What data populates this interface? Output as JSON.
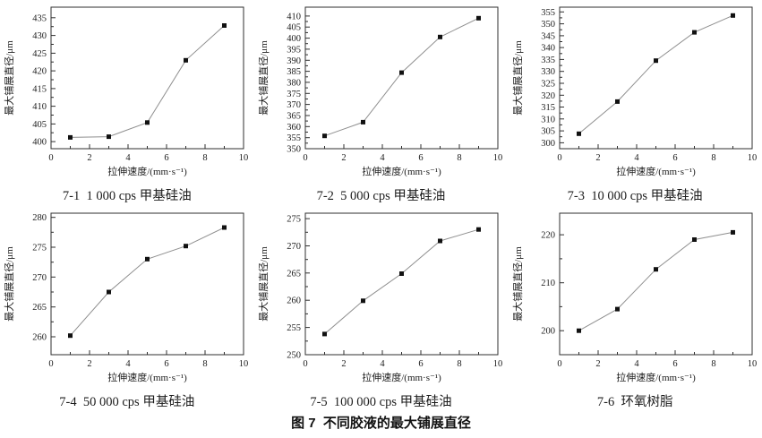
{
  "figure_caption": "图 7  不同胶液的最大铺展直径",
  "colors": {
    "axis": "#2f2f2f",
    "line": "#8f8f8f",
    "marker": "#111111",
    "background": "#ffffff"
  },
  "chart_data": [
    {
      "id": "7-1",
      "type": "line",
      "title": "7-1  1 000 cps 甲基硅油",
      "xlabel": "拉伸速度/(mm·s⁻¹)",
      "ylabel": "最大铺展直径/μm",
      "x": [
        1,
        3,
        5,
        7,
        9
      ],
      "y": [
        401.2,
        401.4,
        405.4,
        423.0,
        432.8
      ],
      "xlim": [
        0,
        10
      ],
      "ylim": [
        398,
        438
      ],
      "xticks": [
        0,
        2,
        4,
        6,
        8,
        10
      ],
      "yticks": [
        400,
        405,
        410,
        415,
        420,
        425,
        430,
        435
      ],
      "marker": "square",
      "grid": false,
      "legend": "none"
    },
    {
      "id": "7-2",
      "type": "line",
      "title": "7-2  5 000 cps 甲基硅油",
      "xlabel": "拉伸速度/(mm·s⁻¹)",
      "ylabel": "最大铺展直径/μm",
      "x": [
        1,
        3,
        5,
        7,
        9
      ],
      "y": [
        355.8,
        362.0,
        384.4,
        400.5,
        409.0
      ],
      "xlim": [
        0,
        10
      ],
      "ylim": [
        350,
        414
      ],
      "xticks": [
        0,
        2,
        4,
        6,
        8,
        10
      ],
      "yticks": [
        350,
        355,
        360,
        365,
        370,
        375,
        380,
        385,
        390,
        395,
        400,
        405,
        410
      ],
      "marker": "square",
      "grid": false,
      "legend": "none"
    },
    {
      "id": "7-3",
      "type": "line",
      "title": "7-3  10 000 cps 甲基硅油",
      "xlabel": "拉伸速度/(mm·s⁻¹)",
      "ylabel": "最大铺展直径/μm",
      "x": [
        1,
        3,
        5,
        7,
        9
      ],
      "y": [
        303.8,
        317.3,
        334.5,
        346.4,
        353.5
      ],
      "xlim": [
        0,
        10
      ],
      "ylim": [
        297.5,
        357
      ],
      "xticks": [
        0,
        2,
        4,
        6,
        8,
        10
      ],
      "yticks": [
        300,
        305,
        310,
        315,
        320,
        325,
        330,
        335,
        340,
        345,
        350,
        355
      ],
      "marker": "square",
      "grid": false,
      "legend": "none"
    },
    {
      "id": "7-4",
      "type": "line",
      "title": "7-4  50 000 cps 甲基硅油",
      "xlabel": "拉伸速度/(mm·s⁻¹)",
      "ylabel": "最大铺展直径/μm",
      "x": [
        1,
        3,
        5,
        7,
        9
      ],
      "y": [
        260.2,
        267.5,
        273.0,
        275.2,
        278.3
      ],
      "xlim": [
        0,
        10
      ],
      "ylim": [
        257,
        280.7
      ],
      "xticks": [
        0,
        2,
        4,
        6,
        8,
        10
      ],
      "yticks": [
        260,
        265,
        270,
        275,
        280
      ],
      "marker": "square",
      "grid": false,
      "legend": "none"
    },
    {
      "id": "7-5",
      "type": "line",
      "title": "7-5  100 000 cps 甲基硅油",
      "xlabel": "拉伸速度/(mm·s⁻¹)",
      "ylabel": "最大铺展直径/μm",
      "x": [
        1,
        3,
        5,
        7,
        9
      ],
      "y": [
        253.8,
        259.9,
        264.9,
        270.9,
        273.0
      ],
      "xlim": [
        0,
        10
      ],
      "ylim": [
        250,
        276
      ],
      "xticks": [
        0,
        2,
        4,
        6,
        8,
        10
      ],
      "yticks": [
        250,
        255,
        260,
        265,
        270,
        275
      ],
      "marker": "square",
      "grid": false,
      "legend": "none"
    },
    {
      "id": "7-6",
      "type": "line",
      "title": "7-6  环氧树脂",
      "xlabel": "拉伸速度/(mm·s⁻¹)",
      "ylabel": "最大铺展直径/μm",
      "x": [
        1,
        3,
        5,
        7,
        9
      ],
      "y": [
        200.0,
        204.5,
        212.8,
        219.0,
        220.5
      ],
      "xlim": [
        0,
        10
      ],
      "ylim": [
        195,
        224.5
      ],
      "xticks": [
        0,
        2,
        4,
        6,
        8,
        10
      ],
      "yticks": [
        200,
        210,
        220
      ],
      "marker": "square",
      "grid": false,
      "legend": "none"
    }
  ]
}
